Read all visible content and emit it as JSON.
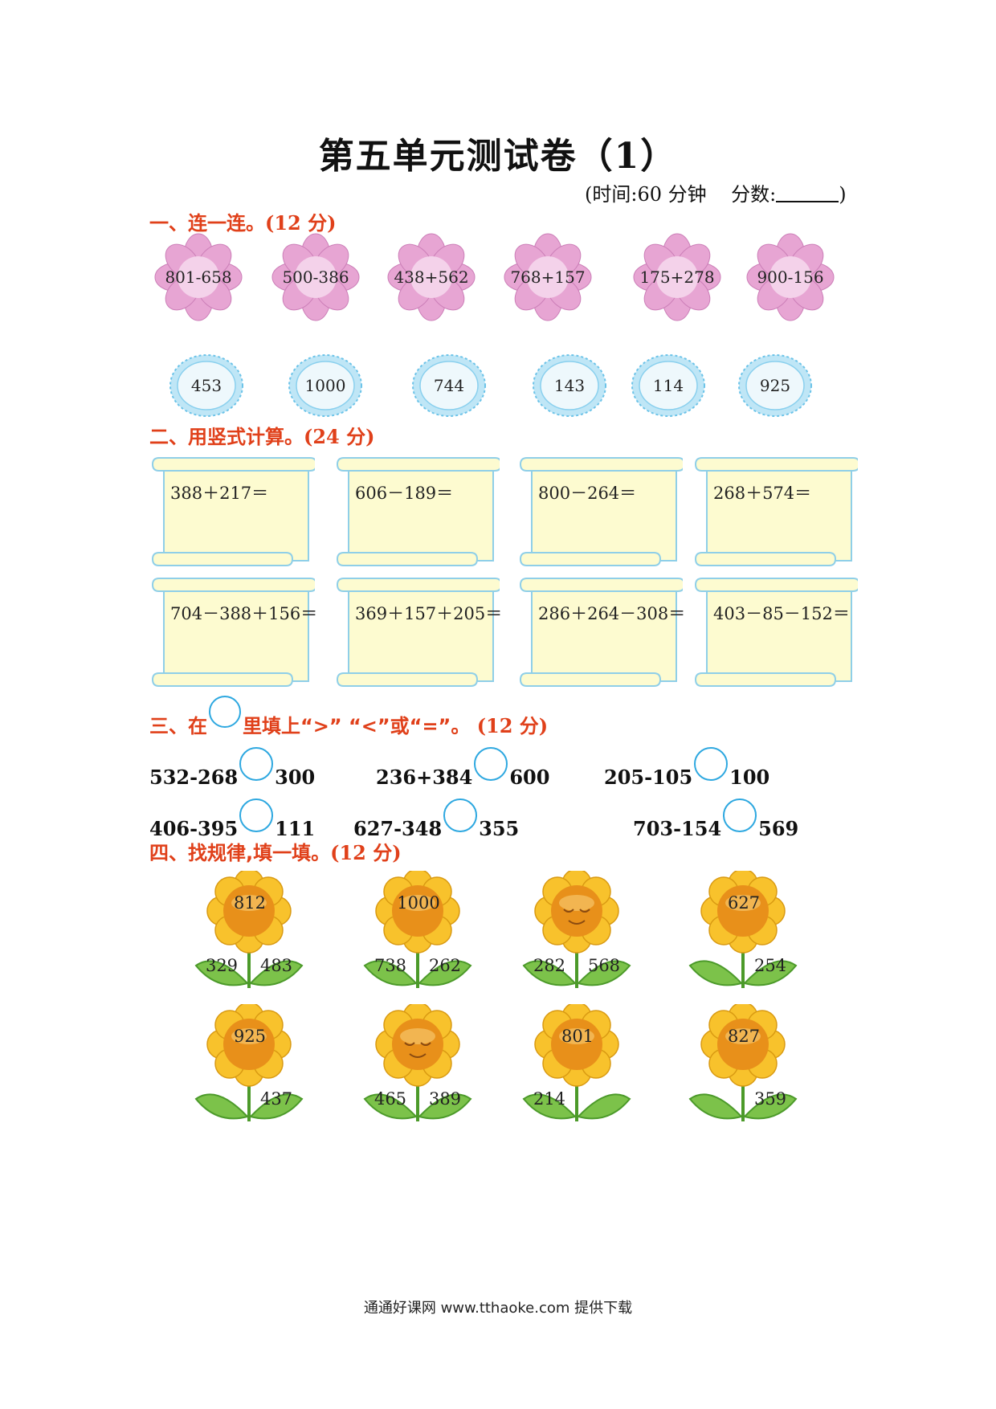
{
  "title": "第五单元测试卷（1）",
  "meta": {
    "time": "(时间:60 分钟",
    "score_label": "分数:",
    "close": ")"
  },
  "section1": {
    "heading": "一、连一连。",
    "score": "(12 分)",
    "flowers": [
      "801-658",
      "500-386",
      "438+562",
      "768+157",
      "175+278",
      "900-156"
    ],
    "suns": [
      "453",
      "1000",
      "744",
      "143",
      "114",
      "925"
    ]
  },
  "section2": {
    "heading": "二、用竖式计算。",
    "score": "(24 分)",
    "problems": [
      "388＋217＝",
      "606－189＝",
      "800－264＝",
      "268＋574＝",
      "704－388＋156＝",
      "369＋157＋205＝",
      "286＋264－308＝",
      "403－85－152＝"
    ]
  },
  "section3": {
    "heading_before": "三、在",
    "heading_after": "里填上“>” “<”或“=”。",
    "score": "(12 分)",
    "items": [
      {
        "left": "532-268",
        "right": "300"
      },
      {
        "left": "236+384",
        "right": "600"
      },
      {
        "left": "205-105",
        "right": "100"
      },
      {
        "left": "406-395",
        "right": "111"
      },
      {
        "left": "627-348",
        "right": "355"
      },
      {
        "left": "703-154",
        "right": "569"
      }
    ]
  },
  "section4": {
    "heading": "四、找规律,填一填。",
    "score": "(12 分)",
    "sunflowers": [
      {
        "top": "812",
        "left": "329",
        "right": "483"
      },
      {
        "top": "1000",
        "left": "738",
        "right": "262"
      },
      {
        "top": "",
        "left": "282",
        "right": "568"
      },
      {
        "top": "627",
        "left": "",
        "right": "254"
      },
      {
        "top": "925",
        "left": "",
        "right": "437"
      },
      {
        "top": "",
        "left": "465",
        "right": "389"
      },
      {
        "top": "801",
        "left": "214",
        "right": ""
      },
      {
        "top": "827",
        "left": "",
        "right": "359"
      }
    ]
  },
  "footer": "通通好课网 www.tthaoke.com 提供下载",
  "colors": {
    "heading": "#e0401a",
    "circle": "#2ea8e0",
    "scroll_fill": "#fdfbd0",
    "scroll_line": "#8fcfe8"
  }
}
